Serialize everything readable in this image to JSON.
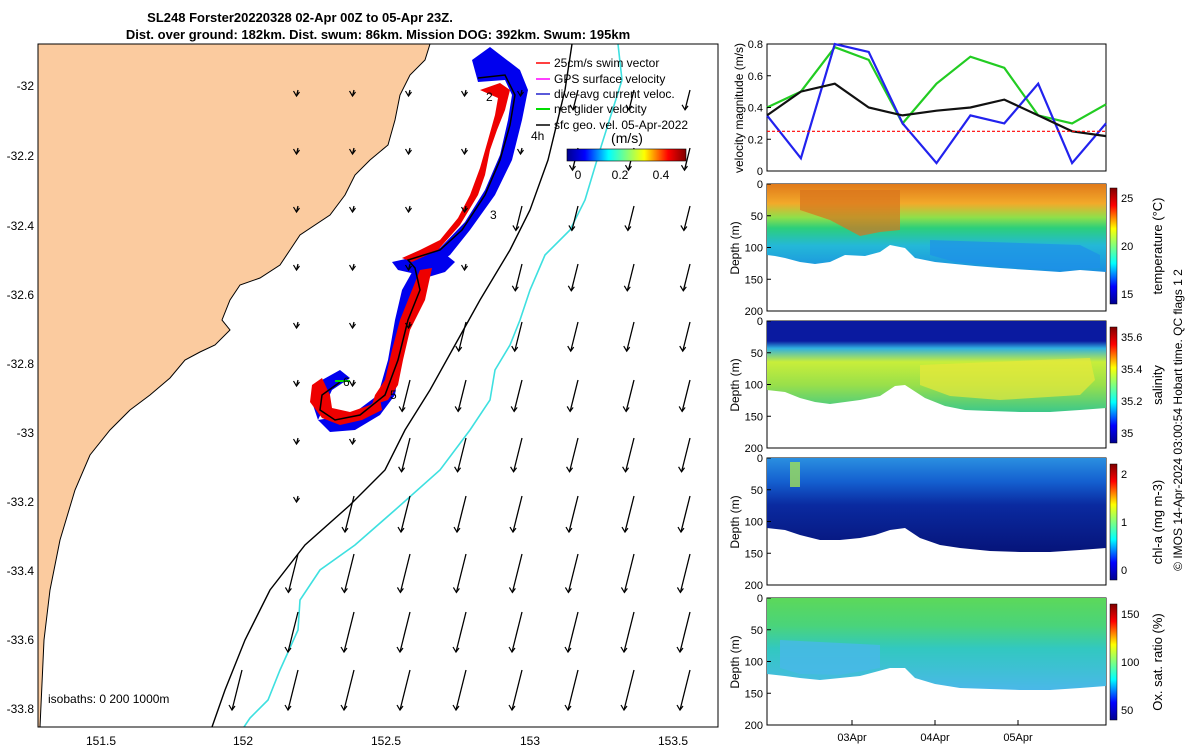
{
  "title": {
    "line1": "SL248 Forster20220328 02-Apr 00Z to 05-Apr 23Z.",
    "line2": "Dist. over ground: 182km. Dist. swum: 86km. Mission DOG: 392km. Swum: 195km"
  },
  "map": {
    "legend": [
      {
        "label": "25cm/s swim vector",
        "color": "#ff0000"
      },
      {
        "label": "GPS surface velocity",
        "color": "#ff00ff"
      },
      {
        "label": "dive-avg current veloc.",
        "color": "#2222cc"
      },
      {
        "label": "net glider velocity",
        "color": "#00dd00"
      },
      {
        "label": "sfc geo. vel. 05-Apr-2022",
        "color": "#000000"
      }
    ],
    "colorbar": {
      "title": "(m/s)",
      "ticks": [
        "0",
        "0.2",
        "0.4"
      ]
    },
    "isobaths_label": "isobaths: 0   200  1000m",
    "track_labels": [
      "2",
      "3",
      "4h",
      "5",
      "6"
    ],
    "land_color": "#fbcb9f",
    "shelf_color": "#3ee0e0",
    "xticks": [
      "151.5",
      "152",
      "152.5",
      "153",
      "153.5"
    ],
    "yticks": [
      "-32",
      "-32.2",
      "-32.4",
      "-32.6",
      "-32.8",
      "-33",
      "-33.2",
      "-33.4",
      "-33.6",
      "-33.8"
    ]
  },
  "chart_data": [
    {
      "type": "line",
      "panel": "velocity",
      "ylabel": "velocity magnitude (m/s)",
      "ylim": [
        0,
        0.8
      ],
      "yticks": [
        "0",
        "0.2",
        "0.4",
        "0.6",
        "0.8"
      ],
      "x": [
        0,
        0.1,
        0.2,
        0.3,
        0.4,
        0.5,
        0.6,
        0.7,
        0.8,
        0.9,
        1.0
      ],
      "series": [
        {
          "color": "#22cc22",
          "values": [
            0.4,
            0.5,
            0.78,
            0.7,
            0.3,
            0.55,
            0.72,
            0.65,
            0.35,
            0.3,
            0.42
          ]
        },
        {
          "color": "#2222ee",
          "values": [
            0.35,
            0.08,
            0.8,
            0.75,
            0.3,
            0.05,
            0.35,
            0.3,
            0.55,
            0.05,
            0.3
          ]
        },
        {
          "color": "#111111",
          "values": [
            0.35,
            0.5,
            0.55,
            0.4,
            0.35,
            0.38,
            0.4,
            0.45,
            0.35,
            0.25,
            0.22
          ]
        },
        {
          "color": "#ff0000",
          "values": [
            0.25,
            0.25,
            0.25,
            0.25,
            0.25,
            0.25,
            0.25,
            0.25,
            0.25,
            0.25,
            0.25
          ]
        }
      ]
    },
    {
      "type": "heatmap",
      "panel": "temperature",
      "ylabel": "Depth (m)",
      "yticks": [
        "0",
        "50",
        "100",
        "150",
        "200"
      ],
      "colorbar_label": "temperature (°C)",
      "colorbar_ticks": [
        "15",
        "20",
        "25"
      ]
    },
    {
      "type": "heatmap",
      "panel": "salinity",
      "ylabel": "Depth (m)",
      "yticks": [
        "0",
        "50",
        "100",
        "150",
        "200"
      ],
      "colorbar_label": "salinity",
      "colorbar_ticks": [
        "35",
        "35.2",
        "35.4",
        "35.6"
      ]
    },
    {
      "type": "heatmap",
      "panel": "chl-a",
      "ylabel": "Depth (m)",
      "yticks": [
        "0",
        "50",
        "100",
        "150",
        "200"
      ],
      "colorbar_label": "chl-a (mg m-3)",
      "colorbar_ticks": [
        "0",
        "1",
        "2"
      ]
    },
    {
      "type": "heatmap",
      "panel": "oxygen",
      "ylabel": "Depth (m)",
      "yticks": [
        "0",
        "50",
        "100",
        "150",
        "200"
      ],
      "colorbar_label": "Ox. sat. ratio (%)",
      "colorbar_ticks": [
        "50",
        "100",
        "150"
      ],
      "xticks": [
        "03Apr",
        "04Apr",
        "05Apr"
      ]
    }
  ],
  "side_note": "© IMOS 14-Apr-2024 03:00:54 Hobart time. QC flags 1  2"
}
